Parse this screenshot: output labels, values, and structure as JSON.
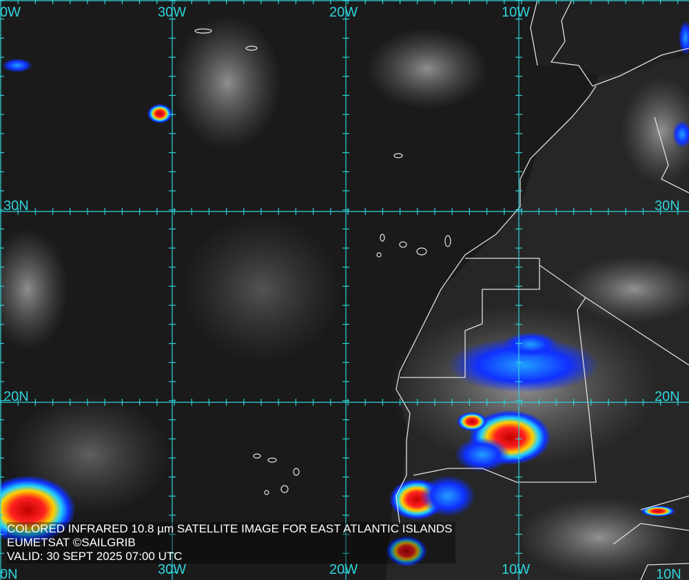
{
  "caption": {
    "line1": "COLORED INFRARED 10.8 µm SATELLITE IMAGE FOR EAST ATLANTIC ISLANDS",
    "line2": "EUMETSAT ©SAILGRIB",
    "line3": "VALID:  30 SEPT 2025 07:00 UTC"
  },
  "grid": {
    "longitudes": [
      "0W",
      "30W",
      "20W",
      "10W"
    ],
    "longitudes_bottom": [
      "0N",
      "30W",
      "20W",
      "10W",
      "10N"
    ],
    "latitudes_left": [
      "30N",
      "20N"
    ],
    "latitudes_right": [
      "30N",
      "20N"
    ]
  },
  "colors": {
    "grid": "#2fd3dc",
    "coast": "#e0e0e0",
    "cold_top_red": "#e01010",
    "blue": "#1030ff"
  }
}
